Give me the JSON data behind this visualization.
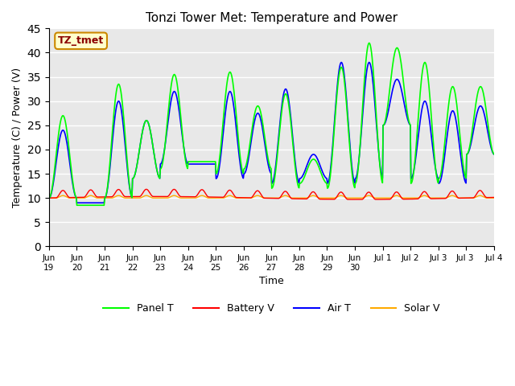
{
  "title": "Tonzi Tower Met: Temperature and Power",
  "ylabel": "Temperature (C) / Power (V)",
  "xlabel": "Time",
  "annotation": "TZ_tmet",
  "ylim": [
    0,
    45
  ],
  "bg_color": "#e8e8e8",
  "fig_color": "#ffffff",
  "grid_color": "#ffffff",
  "panel_t_color": "#00ff00",
  "battery_v_color": "#ff0000",
  "air_t_color": "#0000ff",
  "solar_v_color": "#ffaa00",
  "legend_labels": [
    "Panel T",
    "Battery V",
    "Air T",
    "Solar V"
  ],
  "xtick_labels": [
    "Jun\n19",
    "Jun\n20",
    "Jun\n21",
    "Jun\n22",
    "Jun\n23",
    "Jun\n24",
    "Jun\n25",
    "Jun\n26",
    "Jun\n27",
    "Jun\n28",
    "Jun\n29",
    "Jun\n30",
    "Jul 1",
    "Jul 2",
    "Jul 3",
    "Jul 4"
  ],
  "days": 16,
  "pts_per_day": 48
}
